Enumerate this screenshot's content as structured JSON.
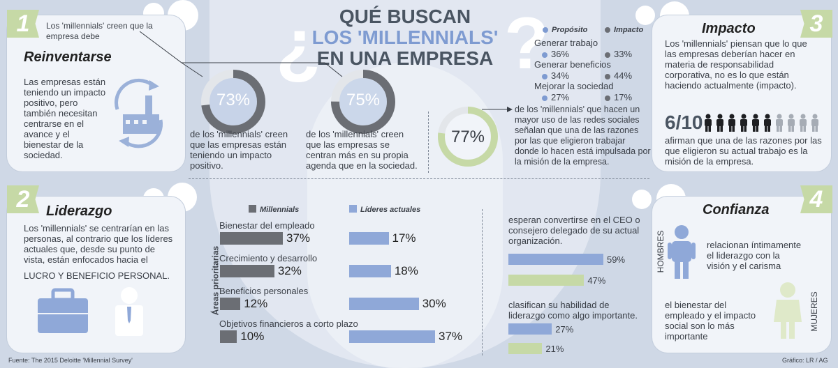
{
  "title": {
    "line1": "QUÉ BUSCAN",
    "line2": "LOS 'MILLENNIALS'",
    "line3": "EN UNA EMPRESA",
    "qmark_open": "¿",
    "qmark_close": "?"
  },
  "section1": {
    "number": "1",
    "intro": "Los 'millennials' creen que la empresa debe",
    "heading": "Reinventarse",
    "body": "Las empresas están teniendo un impacto positivo, pero también necesitan centrarse en el avance y el bienestar de la sociedad.",
    "stat1": {
      "value": "73%",
      "fraction": 0.73,
      "text": "de los 'millennials' creen que las empresas están teniendo un impacto positivo."
    },
    "stat2": {
      "value": "75%",
      "fraction": 0.75,
      "text": "de los 'millennials' creen que las empresas se centran más en su propia agenda que en la sociedad."
    }
  },
  "center": {
    "legend": {
      "a": "Propósito",
      "b": "Impacto"
    },
    "rows": [
      {
        "label": "Generar trabajo",
        "a": "36%",
        "b": "33%"
      },
      {
        "label": "Generar beneficios",
        "a": "34%",
        "b": "44%"
      },
      {
        "label": "Mejorar la sociedad",
        "a": "27%",
        "b": "17%"
      }
    ],
    "stat": {
      "value": "77%",
      "fraction": 0.77,
      "text": "de los 'millennials' que hacen un mayor uso de las redes sociales señalan que una de las razones por las que eligieron trabajar donde lo hacen está impulsada por la misión de la empresa."
    }
  },
  "section3": {
    "number": "3",
    "heading": "Impacto",
    "body": "Los 'millennials' piensan que lo que las empresas deberían hacer en materia de responsabilidad corporativa, no es lo que están haciendo actualmente (impacto).",
    "ratio": "6/10",
    "ratio_fraction": 0.6,
    "ratio_text": "afirman que una de las razones por las que eligieron su actual trabajo es la misión de la empresa."
  },
  "section2": {
    "number": "2",
    "heading": "Liderazgo",
    "body": "Los 'millennials' se centrarían en las personas, al contrario que los líderes actuales que, desde su punto de vista, están enfocados hacia el",
    "emphasis": "LUCRO Y BENEFICIO PERSONAL."
  },
  "chart_data": [
    {
      "type": "bar",
      "ylabel": "Áreas prioritarias",
      "categories": [
        "Bienestar del empleado",
        "Crecimiento y desarrollo",
        "Beneficios personales",
        "Objetivos financieros a corto plazo"
      ],
      "series": [
        {
          "name": "Millennials",
          "values": [
            37,
            32,
            12,
            10
          ],
          "labels": [
            "37%",
            "32%",
            "12%",
            "10%"
          ]
        },
        {
          "name": "Líderes actuales",
          "values": [
            17,
            18,
            30,
            37
          ],
          "labels": [
            "17%",
            "18%",
            "30%",
            "37%"
          ]
        }
      ]
    },
    {
      "type": "bar",
      "categories": [
        "esperan convertirse en el CEO o consejero delegado de su actual organización.",
        "clasifican su habilidad de liderazgo como algo importante."
      ],
      "series": [
        {
          "values": [
            59,
            27
          ],
          "labels": [
            "59%",
            "27%"
          ]
        },
        {
          "values": [
            47,
            21
          ],
          "labels": [
            "47%",
            "21%"
          ]
        }
      ]
    }
  ],
  "section4": {
    "number": "4",
    "heading": "Confianza",
    "men_label": "HOMBRES",
    "men_text": "relacionan íntimamente el liderazgo con la visión y el carisma",
    "women_label": "MUJERES",
    "women_text": "el bienestar del empleado y el impacto social son lo más importante"
  },
  "footer": {
    "source": "Fuente: The 2015 Deloitte 'Millennial Survey'",
    "credit": "Gráfico: LR / AG"
  },
  "colors": {
    "millennials": "#6b6e74",
    "leaders": "#8fa8d8",
    "green": "#c6d9a6",
    "blue": "#7e9bd1"
  }
}
